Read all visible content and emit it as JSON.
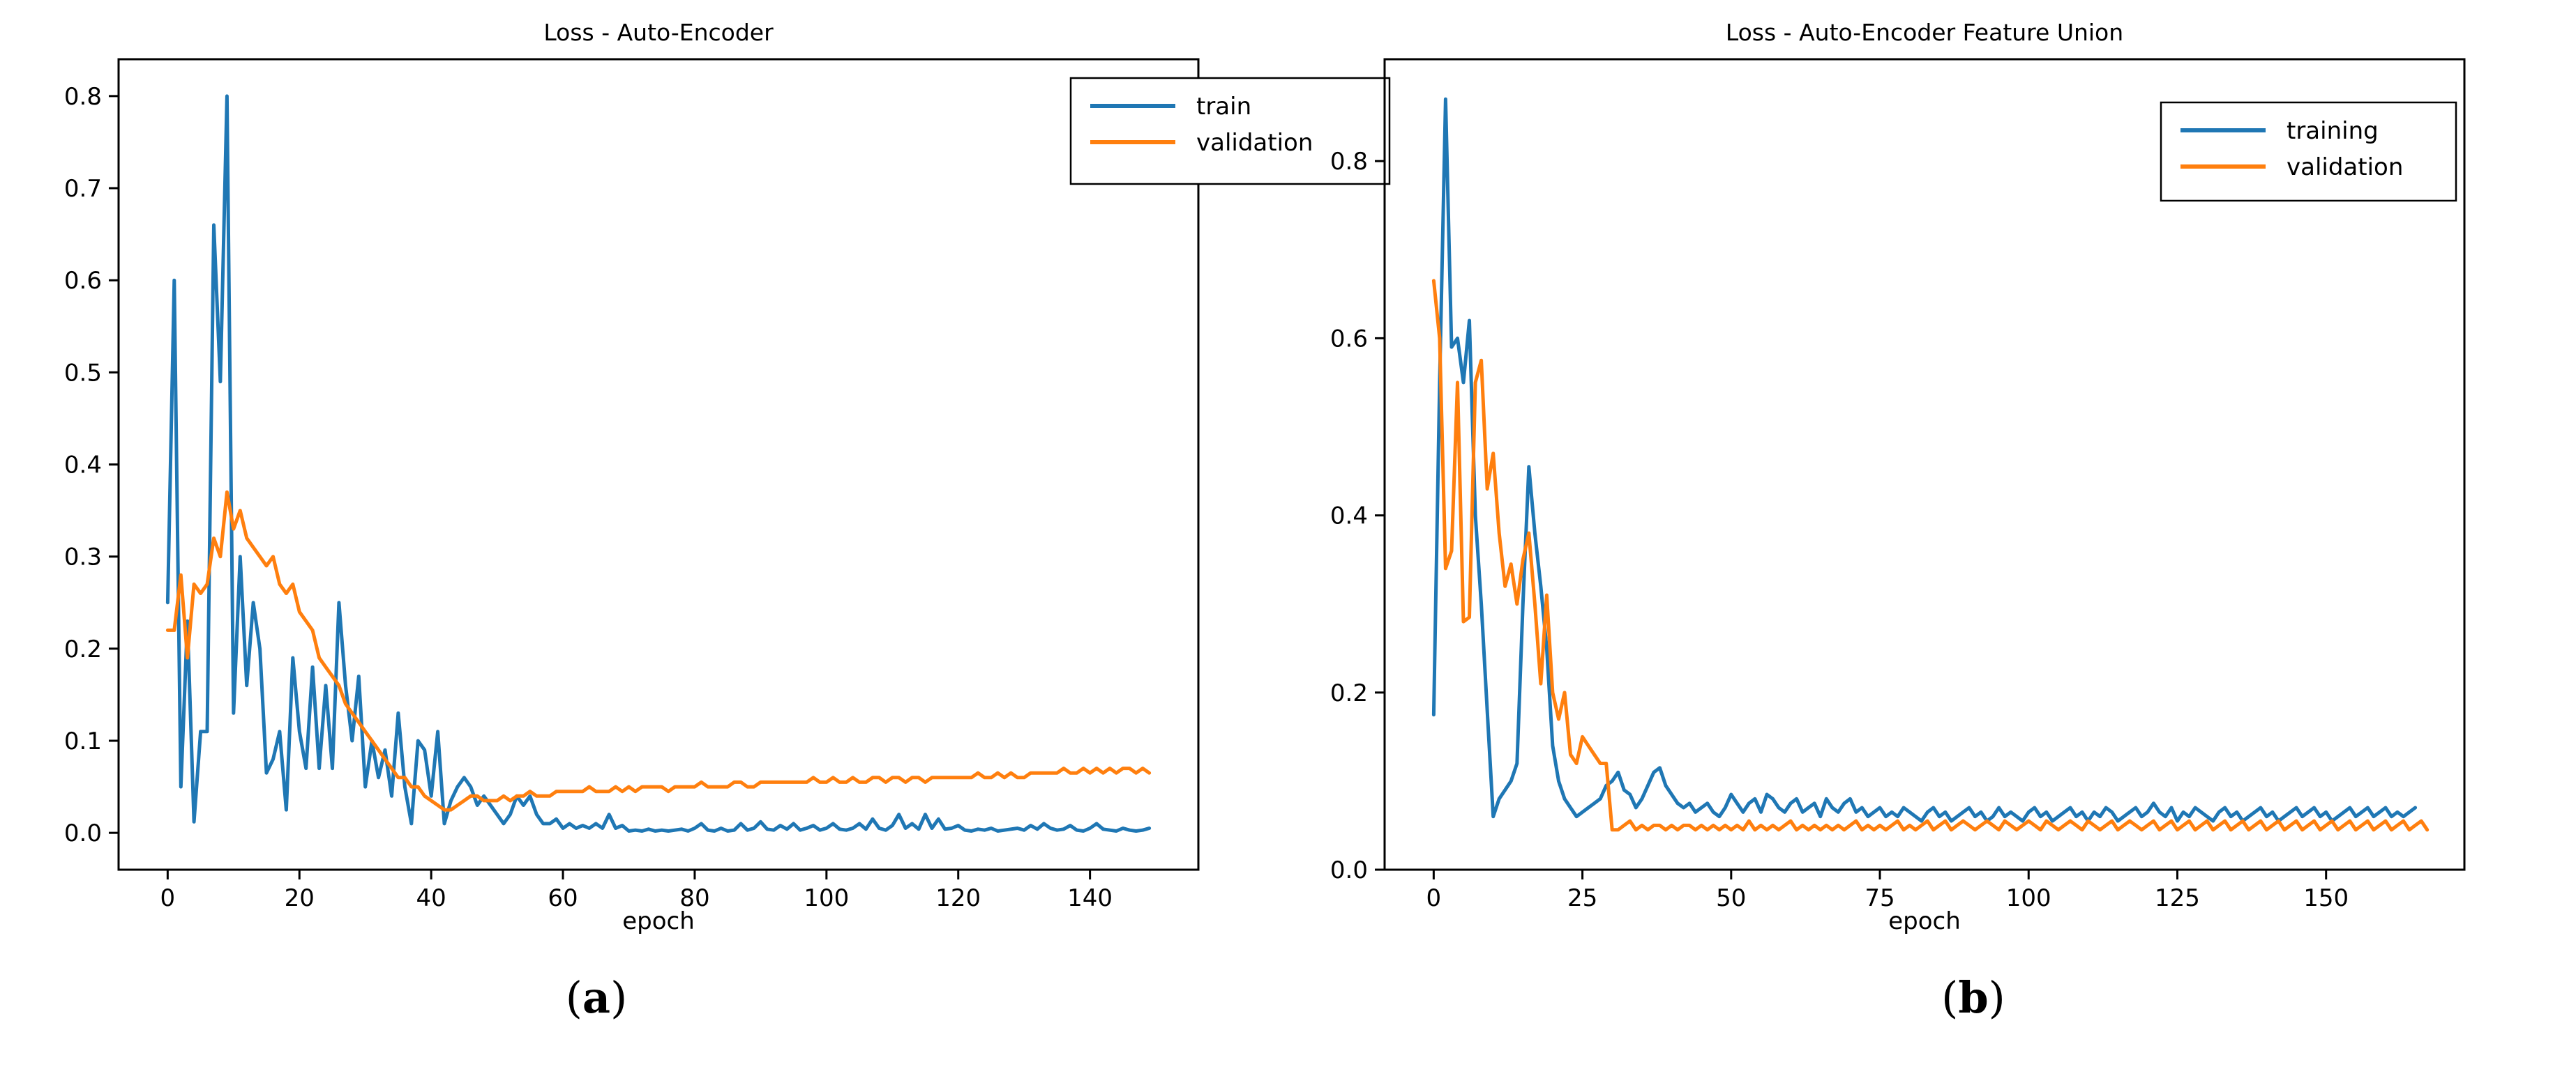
{
  "colors": {
    "train": "#1f77b4",
    "validation": "#ff7f0e",
    "axis": "#000000"
  },
  "panel_labels": [
    {
      "open": "(",
      "letter": "a",
      "close": ")"
    },
    {
      "open": "(",
      "letter": "b",
      "close": ")"
    }
  ],
  "chart_data": [
    {
      "type": "line",
      "title": "Loss - Auto-Encoder",
      "xlabel": "epoch",
      "ylabel": "",
      "xlim": [
        -7.45,
        156.45
      ],
      "ylim": [
        -0.04,
        0.84
      ],
      "xticks": [
        0,
        20,
        40,
        60,
        80,
        100,
        120,
        140
      ],
      "xtick_labels": [
        "0",
        "20",
        "40",
        "60",
        "80",
        "100",
        "120",
        "140"
      ],
      "yticks": [
        0.0,
        0.1,
        0.2,
        0.3,
        0.4,
        0.5,
        0.6,
        0.7,
        0.8
      ],
      "ytick_labels": [
        "0.0",
        "0.1",
        "0.2",
        "0.3",
        "0.4",
        "0.5",
        "0.6",
        "0.7",
        "0.8"
      ],
      "legend_position": "top-right",
      "series": [
        {
          "name": "train",
          "color": "#1f77b4",
          "x_start": 0,
          "x_step": 1,
          "values": [
            0.25,
            0.6,
            0.05,
            0.23,
            0.012,
            0.11,
            0.11,
            0.66,
            0.49,
            0.8,
            0.13,
            0.3,
            0.16,
            0.25,
            0.2,
            0.065,
            0.08,
            0.11,
            0.025,
            0.19,
            0.11,
            0.07,
            0.18,
            0.07,
            0.16,
            0.07,
            0.25,
            0.16,
            0.1,
            0.17,
            0.05,
            0.1,
            0.06,
            0.09,
            0.04,
            0.13,
            0.05,
            0.01,
            0.1,
            0.09,
            0.04,
            0.11,
            0.01,
            0.035,
            0.05,
            0.06,
            0.05,
            0.03,
            0.04,
            0.03,
            0.02,
            0.01,
            0.02,
            0.04,
            0.03,
            0.04,
            0.02,
            0.01,
            0.01,
            0.015,
            0.005,
            0.01,
            0.005,
            0.008,
            0.005,
            0.01,
            0.005,
            0.02,
            0.005,
            0.008,
            0.002,
            0.003,
            0.002,
            0.004,
            0.002,
            0.003,
            0.002,
            0.003,
            0.004,
            0.002,
            0.005,
            0.01,
            0.003,
            0.002,
            0.005,
            0.002,
            0.003,
            0.01,
            0.003,
            0.005,
            0.012,
            0.004,
            0.003,
            0.008,
            0.004,
            0.01,
            0.003,
            0.005,
            0.008,
            0.003,
            0.005,
            0.01,
            0.004,
            0.003,
            0.005,
            0.01,
            0.004,
            0.015,
            0.005,
            0.003,
            0.008,
            0.02,
            0.005,
            0.01,
            0.004,
            0.02,
            0.005,
            0.015,
            0.004,
            0.005,
            0.008,
            0.003,
            0.002,
            0.004,
            0.003,
            0.005,
            0.002,
            0.003,
            0.004,
            0.005,
            0.003,
            0.008,
            0.004,
            0.01,
            0.005,
            0.003,
            0.004,
            0.008,
            0.003,
            0.002,
            0.005,
            0.01,
            0.004,
            0.003,
            0.002,
            0.005,
            0.003,
            0.002,
            0.003,
            0.005
          ]
        },
        {
          "name": "validation",
          "color": "#ff7f0e",
          "x_start": 0,
          "x_step": 1,
          "values": [
            0.22,
            0.22,
            0.28,
            0.19,
            0.27,
            0.26,
            0.27,
            0.32,
            0.3,
            0.37,
            0.33,
            0.35,
            0.32,
            0.31,
            0.3,
            0.29,
            0.3,
            0.27,
            0.26,
            0.27,
            0.24,
            0.23,
            0.22,
            0.19,
            0.18,
            0.17,
            0.16,
            0.14,
            0.13,
            0.12,
            0.11,
            0.1,
            0.09,
            0.08,
            0.07,
            0.06,
            0.06,
            0.05,
            0.05,
            0.04,
            0.035,
            0.03,
            0.025,
            0.025,
            0.03,
            0.035,
            0.04,
            0.04,
            0.035,
            0.035,
            0.035,
            0.04,
            0.035,
            0.04,
            0.04,
            0.045,
            0.04,
            0.04,
            0.04,
            0.045,
            0.045,
            0.045,
            0.045,
            0.045,
            0.05,
            0.045,
            0.045,
            0.045,
            0.05,
            0.045,
            0.05,
            0.045,
            0.05,
            0.05,
            0.05,
            0.05,
            0.045,
            0.05,
            0.05,
            0.05,
            0.05,
            0.055,
            0.05,
            0.05,
            0.05,
            0.05,
            0.055,
            0.055,
            0.05,
            0.05,
            0.055,
            0.055,
            0.055,
            0.055,
            0.055,
            0.055,
            0.055,
            0.055,
            0.06,
            0.055,
            0.055,
            0.06,
            0.055,
            0.055,
            0.06,
            0.055,
            0.055,
            0.06,
            0.06,
            0.055,
            0.06,
            0.06,
            0.055,
            0.06,
            0.06,
            0.055,
            0.06,
            0.06,
            0.06,
            0.06,
            0.06,
            0.06,
            0.06,
            0.065,
            0.06,
            0.06,
            0.065,
            0.06,
            0.065,
            0.06,
            0.06,
            0.065,
            0.065,
            0.065,
            0.065,
            0.065,
            0.07,
            0.065,
            0.065,
            0.07,
            0.065,
            0.07,
            0.065,
            0.07,
            0.065,
            0.07,
            0.07,
            0.065,
            0.07,
            0.065
          ]
        }
      ]
    },
    {
      "type": "line",
      "title": "Loss - Auto-Encoder Feature Union",
      "xlabel": "epoch",
      "ylabel": "",
      "xlim": [
        -8.25,
        173.25
      ],
      "ylim": [
        0.0,
        0.915
      ],
      "xticks": [
        0,
        25,
        50,
        75,
        100,
        125,
        150
      ],
      "xtick_labels": [
        "0",
        "25",
        "50",
        "75",
        "100",
        "125",
        "150"
      ],
      "yticks": [
        0.0,
        0.2,
        0.4,
        0.6,
        0.8
      ],
      "ytick_labels": [
        "0.0",
        "0.2",
        "0.4",
        "0.6",
        "0.8"
      ],
      "legend_position": "top-right",
      "series": [
        {
          "name": "training",
          "color": "#1f77b4",
          "x_start": 0,
          "x_step": 1,
          "values": [
            0.175,
            0.55,
            0.87,
            0.59,
            0.6,
            0.55,
            0.62,
            0.4,
            0.3,
            0.18,
            0.06,
            0.08,
            0.09,
            0.1,
            0.12,
            0.3,
            0.455,
            0.38,
            0.32,
            0.25,
            0.14,
            0.1,
            0.08,
            0.07,
            0.06,
            0.065,
            0.07,
            0.075,
            0.08,
            0.095,
            0.1,
            0.11,
            0.09,
            0.085,
            0.07,
            0.08,
            0.095,
            0.11,
            0.115,
            0.095,
            0.085,
            0.075,
            0.07,
            0.075,
            0.065,
            0.07,
            0.075,
            0.065,
            0.06,
            0.07,
            0.085,
            0.075,
            0.065,
            0.075,
            0.08,
            0.065,
            0.085,
            0.08,
            0.07,
            0.065,
            0.075,
            0.08,
            0.065,
            0.07,
            0.075,
            0.06,
            0.08,
            0.07,
            0.065,
            0.075,
            0.08,
            0.065,
            0.07,
            0.06,
            0.065,
            0.07,
            0.06,
            0.065,
            0.06,
            0.07,
            0.065,
            0.06,
            0.055,
            0.065,
            0.07,
            0.06,
            0.065,
            0.055,
            0.06,
            0.065,
            0.07,
            0.06,
            0.065,
            0.055,
            0.06,
            0.07,
            0.06,
            0.065,
            0.06,
            0.055,
            0.065,
            0.07,
            0.06,
            0.065,
            0.055,
            0.06,
            0.065,
            0.07,
            0.06,
            0.065,
            0.055,
            0.065,
            0.06,
            0.07,
            0.065,
            0.055,
            0.06,
            0.065,
            0.07,
            0.06,
            0.065,
            0.075,
            0.065,
            0.06,
            0.07,
            0.055,
            0.065,
            0.06,
            0.07,
            0.065,
            0.06,
            0.055,
            0.065,
            0.07,
            0.06,
            0.065,
            0.055,
            0.06,
            0.065,
            0.07,
            0.06,
            0.065,
            0.055,
            0.06,
            0.065,
            0.07,
            0.06,
            0.065,
            0.07,
            0.06,
            0.065,
            0.055,
            0.06,
            0.065,
            0.07,
            0.06,
            0.065,
            0.07,
            0.06,
            0.065,
            0.07,
            0.06,
            0.065,
            0.06,
            0.065,
            0.07
          ]
        },
        {
          "name": "validation",
          "color": "#ff7f0e",
          "x_start": 0,
          "x_step": 1,
          "values": [
            0.665,
            0.6,
            0.34,
            0.36,
            0.55,
            0.28,
            0.285,
            0.55,
            0.575,
            0.43,
            0.47,
            0.38,
            0.32,
            0.345,
            0.3,
            0.35,
            0.38,
            0.3,
            0.21,
            0.31,
            0.2,
            0.17,
            0.2,
            0.13,
            0.12,
            0.15,
            0.14,
            0.13,
            0.12,
            0.12,
            0.045,
            0.045,
            0.05,
            0.055,
            0.045,
            0.05,
            0.045,
            0.05,
            0.05,
            0.045,
            0.05,
            0.045,
            0.05,
            0.05,
            0.045,
            0.05,
            0.045,
            0.05,
            0.045,
            0.05,
            0.045,
            0.05,
            0.045,
            0.055,
            0.045,
            0.05,
            0.045,
            0.05,
            0.045,
            0.05,
            0.055,
            0.045,
            0.05,
            0.045,
            0.05,
            0.045,
            0.05,
            0.045,
            0.05,
            0.045,
            0.05,
            0.055,
            0.045,
            0.05,
            0.045,
            0.05,
            0.045,
            0.05,
            0.055,
            0.045,
            0.05,
            0.045,
            0.05,
            0.055,
            0.045,
            0.05,
            0.055,
            0.045,
            0.05,
            0.055,
            0.05,
            0.045,
            0.05,
            0.055,
            0.05,
            0.045,
            0.055,
            0.05,
            0.045,
            0.05,
            0.055,
            0.05,
            0.045,
            0.055,
            0.05,
            0.045,
            0.05,
            0.055,
            0.05,
            0.045,
            0.055,
            0.05,
            0.045,
            0.05,
            0.055,
            0.045,
            0.05,
            0.055,
            0.05,
            0.045,
            0.05,
            0.055,
            0.045,
            0.05,
            0.055,
            0.045,
            0.05,
            0.055,
            0.045,
            0.05,
            0.055,
            0.045,
            0.05,
            0.055,
            0.045,
            0.05,
            0.055,
            0.045,
            0.05,
            0.055,
            0.045,
            0.05,
            0.055,
            0.045,
            0.05,
            0.055,
            0.045,
            0.05,
            0.055,
            0.045,
            0.05,
            0.055,
            0.045,
            0.05,
            0.055,
            0.045,
            0.05,
            0.055,
            0.045,
            0.05,
            0.055,
            0.045,
            0.05,
            0.055,
            0.045,
            0.05,
            0.055,
            0.045
          ]
        }
      ]
    }
  ]
}
